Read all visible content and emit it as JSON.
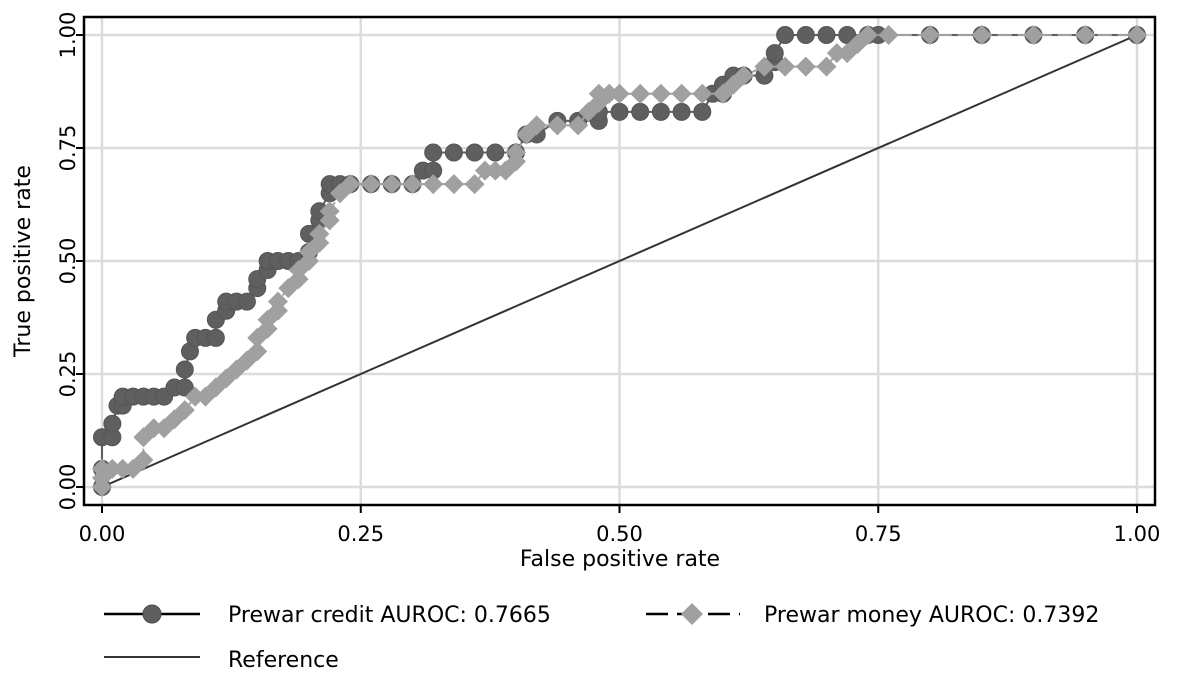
{
  "chart_data": {
    "type": "line",
    "title": "",
    "xlabel": "False positive rate",
    "ylabel": "True positive rate",
    "xlim": [
      0,
      1
    ],
    "ylim": [
      0,
      1
    ],
    "xticks": [
      "0.00",
      "0.25",
      "0.50",
      "0.75",
      "1.00"
    ],
    "yticks": [
      "0.00",
      "0.25",
      "0.50",
      "0.75",
      "1.00"
    ],
    "grid": true,
    "legend_position": "bottom",
    "series": [
      {
        "name": "Prewar credit AUROC: 0.7665",
        "marker": "circle",
        "color": "#5f5f5f",
        "x": [
          0.0,
          0.0,
          0.0,
          0.01,
          0.01,
          0.015,
          0.02,
          0.02,
          0.03,
          0.04,
          0.05,
          0.06,
          0.07,
          0.08,
          0.08,
          0.085,
          0.09,
          0.1,
          0.11,
          0.11,
          0.12,
          0.12,
          0.13,
          0.14,
          0.15,
          0.15,
          0.16,
          0.16,
          0.17,
          0.18,
          0.19,
          0.2,
          0.2,
          0.21,
          0.21,
          0.22,
          0.22,
          0.23,
          0.24,
          0.26,
          0.28,
          0.3,
          0.31,
          0.32,
          0.32,
          0.34,
          0.36,
          0.38,
          0.4,
          0.41,
          0.42,
          0.44,
          0.46,
          0.48,
          0.48,
          0.5,
          0.52,
          0.54,
          0.56,
          0.58,
          0.59,
          0.6,
          0.6,
          0.61,
          0.62,
          0.64,
          0.65,
          0.65,
          0.66,
          0.68,
          0.7,
          0.72,
          0.74,
          0.75,
          0.8,
          0.85,
          0.9,
          0.95,
          1.0
        ],
        "y": [
          0.0,
          0.04,
          0.11,
          0.11,
          0.14,
          0.18,
          0.18,
          0.2,
          0.2,
          0.2,
          0.2,
          0.2,
          0.22,
          0.22,
          0.26,
          0.3,
          0.33,
          0.33,
          0.33,
          0.37,
          0.39,
          0.41,
          0.41,
          0.41,
          0.44,
          0.46,
          0.48,
          0.5,
          0.5,
          0.5,
          0.5,
          0.52,
          0.56,
          0.59,
          0.61,
          0.65,
          0.67,
          0.67,
          0.67,
          0.67,
          0.67,
          0.67,
          0.7,
          0.7,
          0.74,
          0.74,
          0.74,
          0.74,
          0.74,
          0.78,
          0.78,
          0.81,
          0.81,
          0.81,
          0.83,
          0.83,
          0.83,
          0.83,
          0.83,
          0.83,
          0.87,
          0.87,
          0.89,
          0.91,
          0.91,
          0.91,
          0.94,
          0.96,
          1.0,
          1.0,
          1.0,
          1.0,
          1.0,
          1.0,
          1.0,
          1.0,
          1.0,
          1.0,
          1.0
        ]
      },
      {
        "name": "Prewar money AUROC: 0.7392",
        "marker": "diamond",
        "color": "#a0a0a0",
        "x": [
          0.0,
          0.0,
          0.0,
          0.01,
          0.02,
          0.03,
          0.04,
          0.04,
          0.05,
          0.06,
          0.07,
          0.08,
          0.09,
          0.1,
          0.11,
          0.12,
          0.13,
          0.14,
          0.15,
          0.15,
          0.16,
          0.16,
          0.17,
          0.17,
          0.18,
          0.19,
          0.19,
          0.2,
          0.2,
          0.21,
          0.21,
          0.22,
          0.22,
          0.23,
          0.24,
          0.26,
          0.28,
          0.3,
          0.32,
          0.34,
          0.36,
          0.37,
          0.38,
          0.39,
          0.4,
          0.4,
          0.41,
          0.42,
          0.44,
          0.46,
          0.47,
          0.48,
          0.48,
          0.49,
          0.5,
          0.52,
          0.54,
          0.56,
          0.58,
          0.6,
          0.61,
          0.62,
          0.64,
          0.66,
          0.68,
          0.7,
          0.71,
          0.72,
          0.73,
          0.74,
          0.76,
          0.8,
          0.85,
          0.9,
          0.95,
          1.0
        ],
        "y": [
          0.0,
          0.02,
          0.04,
          0.04,
          0.04,
          0.04,
          0.06,
          0.11,
          0.13,
          0.13,
          0.15,
          0.17,
          0.2,
          0.2,
          0.22,
          0.24,
          0.26,
          0.28,
          0.3,
          0.33,
          0.35,
          0.37,
          0.39,
          0.41,
          0.44,
          0.46,
          0.48,
          0.5,
          0.52,
          0.54,
          0.56,
          0.59,
          0.61,
          0.65,
          0.67,
          0.67,
          0.67,
          0.67,
          0.67,
          0.67,
          0.67,
          0.7,
          0.7,
          0.7,
          0.72,
          0.74,
          0.78,
          0.8,
          0.8,
          0.8,
          0.83,
          0.85,
          0.87,
          0.87,
          0.87,
          0.87,
          0.87,
          0.87,
          0.87,
          0.87,
          0.89,
          0.91,
          0.93,
          0.93,
          0.93,
          0.93,
          0.96,
          0.96,
          0.98,
          1.0,
          1.0,
          1.0,
          1.0,
          1.0,
          1.0,
          1.0
        ]
      },
      {
        "name": "Reference",
        "marker": "none",
        "color": "#333333",
        "x": [
          0,
          1
        ],
        "y": [
          0,
          1
        ]
      }
    ]
  },
  "legend": {
    "credit_label": "Prewar credit AUROC: 0.7665",
    "money_label": "Prewar money AUROC: 0.7392",
    "reference_label": "Reference"
  }
}
